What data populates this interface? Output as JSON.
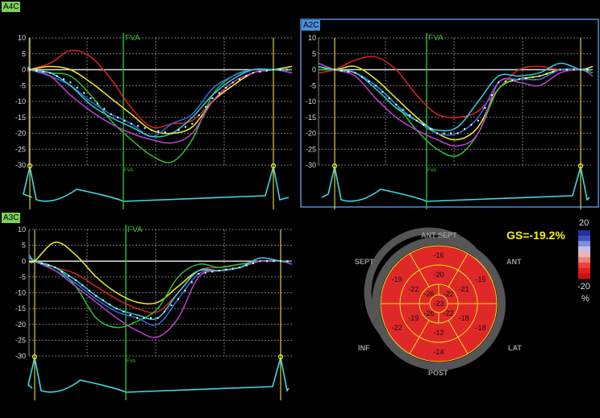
{
  "panels": [
    {
      "id": "a4c",
      "label": "A4C",
      "label_bg": "#7ccf5a",
      "selected": false,
      "fva_label": "FVA",
      "y_ticks": [
        10,
        5,
        0,
        -5,
        -10,
        -15,
        -20,
        -25,
        -30
      ],
      "curves": [
        {
          "color": "#e02020",
          "values": [
            -1,
            0,
            2,
            6,
            4,
            -3,
            -12,
            -18,
            -17,
            -16,
            -10,
            -5,
            -1,
            0,
            1
          ]
        },
        {
          "color": "#f0f020",
          "values": [
            0,
            0,
            1,
            0,
            -4,
            -9,
            -14,
            -19,
            -20,
            -18,
            -10,
            -5,
            -1,
            0,
            1
          ]
        },
        {
          "color": "#30c030",
          "values": [
            0,
            0,
            -1,
            -2,
            -8,
            -16,
            -22,
            -27,
            -29,
            -22,
            -8,
            -2,
            0,
            0,
            0
          ]
        },
        {
          "color": "#3070e0",
          "values": [
            1,
            0,
            -2,
            -5,
            -10,
            -14,
            -17,
            -21,
            -17,
            -14,
            -6,
            -2,
            0,
            0,
            -1
          ]
        },
        {
          "color": "#c040d0",
          "values": [
            1,
            0,
            -2,
            -8,
            -13,
            -17,
            -20,
            -22,
            -23,
            -20,
            -10,
            -4,
            -1,
            0,
            -1
          ]
        },
        {
          "color": "#30d0e0",
          "values": [
            1,
            0,
            -1,
            -5,
            -11,
            -15,
            -18,
            -21,
            -20,
            -15,
            -8,
            -3,
            0,
            0,
            0
          ]
        }
      ],
      "average": [
        1,
        0,
        -1,
        -4,
        -9,
        -14,
        -17,
        -19,
        -20,
        -17,
        -9,
        -4,
        -1,
        0,
        0
      ]
    },
    {
      "id": "a2c",
      "label": "A2C",
      "label_bg": "#4a90d9",
      "selected": true,
      "fva_label": "FVA",
      "y_ticks": [
        10,
        5,
        0,
        -5,
        -10,
        -15,
        -20,
        -25,
        -30
      ],
      "curves": [
        {
          "color": "#e02020",
          "values": [
            -1,
            0,
            3,
            4,
            0,
            -8,
            -14,
            -15,
            -13,
            -6,
            0,
            1,
            0,
            0,
            1
          ]
        },
        {
          "color": "#f0f020",
          "values": [
            1,
            0,
            1,
            -3,
            -9,
            -15,
            -20,
            -22,
            -18,
            -6,
            -3,
            -2,
            0,
            0,
            1
          ]
        },
        {
          "color": "#30c030",
          "values": [
            0,
            0,
            -1,
            -5,
            -11,
            -19,
            -25,
            -27,
            -20,
            -6,
            -3,
            -3,
            0,
            0,
            -1
          ]
        },
        {
          "color": "#3070e0",
          "values": [
            2,
            0,
            -1,
            -5,
            -11,
            -16,
            -20,
            -20,
            -15,
            -4,
            -3,
            -3,
            0,
            0,
            0
          ]
        },
        {
          "color": "#c040d0",
          "values": [
            2,
            0,
            -2,
            -9,
            -15,
            -19,
            -22,
            -24,
            -20,
            -4,
            -4,
            -5,
            -1,
            0,
            -2
          ]
        },
        {
          "color": "#30d0e0",
          "values": [
            1,
            0,
            -1,
            -6,
            -12,
            -16,
            -19,
            -18,
            -10,
            -2,
            -2,
            -1,
            2,
            0,
            0
          ]
        }
      ],
      "average": [
        1,
        0,
        -1,
        -5,
        -11,
        -16,
        -20,
        -20,
        -16,
        -4,
        -3,
        -2,
        0,
        0,
        0
      ]
    },
    {
      "id": "a3c",
      "label": "A3C",
      "label_bg": "#7ccf5a",
      "selected": false,
      "fva_label": "FVA",
      "y_ticks": [
        10,
        5,
        0,
        -5,
        -10,
        -15,
        -20,
        -25,
        -30
      ],
      "curves": [
        {
          "color": "#e02020",
          "values": [
            2,
            0,
            -2,
            -4,
            -8,
            -12,
            -15,
            -16,
            -10,
            -3,
            -2,
            -1,
            0,
            0,
            0
          ]
        },
        {
          "color": "#f0f020",
          "values": [
            0,
            0,
            6,
            2,
            -5,
            -10,
            -13,
            -13,
            -8,
            -3,
            -3,
            -2,
            0,
            0,
            0
          ]
        },
        {
          "color": "#30c030",
          "values": [
            1,
            0,
            -2,
            -8,
            -18,
            -21,
            -19,
            -15,
            -5,
            -1,
            -2,
            -1,
            0,
            0,
            0
          ]
        },
        {
          "color": "#3070e0",
          "values": [
            2,
            0,
            -3,
            -7,
            -12,
            -16,
            -18,
            -20,
            -12,
            -4,
            -3,
            -2,
            0,
            0,
            -1
          ]
        },
        {
          "color": "#c040d0",
          "values": [
            1,
            0,
            -3,
            -8,
            -13,
            -18,
            -22,
            -24,
            -18,
            -5,
            -3,
            -2,
            0,
            0,
            -1
          ]
        },
        {
          "color": "#30d0e0",
          "values": [
            2,
            0,
            -2,
            -6,
            -11,
            -15,
            -17,
            -18,
            -10,
            -3,
            -3,
            -2,
            1,
            0,
            0
          ]
        }
      ],
      "average": [
        1,
        0,
        -2,
        -6,
        -11,
        -15,
        -18,
        -18,
        -12,
        -4,
        -3,
        -2,
        0,
        0,
        0
      ]
    }
  ],
  "bullseye": {
    "global_strain": "GS=-19.2%",
    "directions": {
      "ant_sept": "ANT SEPT",
      "sept": "SEPT",
      "ant": "ANT",
      "inf": "INF",
      "lat": "LAT",
      "post": "POST"
    },
    "basal": [
      -16,
      -15,
      -18,
      -14,
      -22,
      -19
    ],
    "mid": [
      -20,
      -21,
      -18,
      -12,
      -19,
      -22
    ],
    "apical": [
      -22,
      -22,
      -26,
      -26
    ],
    "apex": -23,
    "segment_color": "#e02828",
    "border_color": "#f0e020"
  },
  "colorbar": {
    "max": "20",
    "min": "-20",
    "unit": "%",
    "colors": [
      "#2030a0",
      "#4050c0",
      "#8090d8",
      "#c0c0e8",
      "#f0b0b0",
      "#f08080",
      "#f04040",
      "#e02020",
      "#c81010"
    ]
  }
}
